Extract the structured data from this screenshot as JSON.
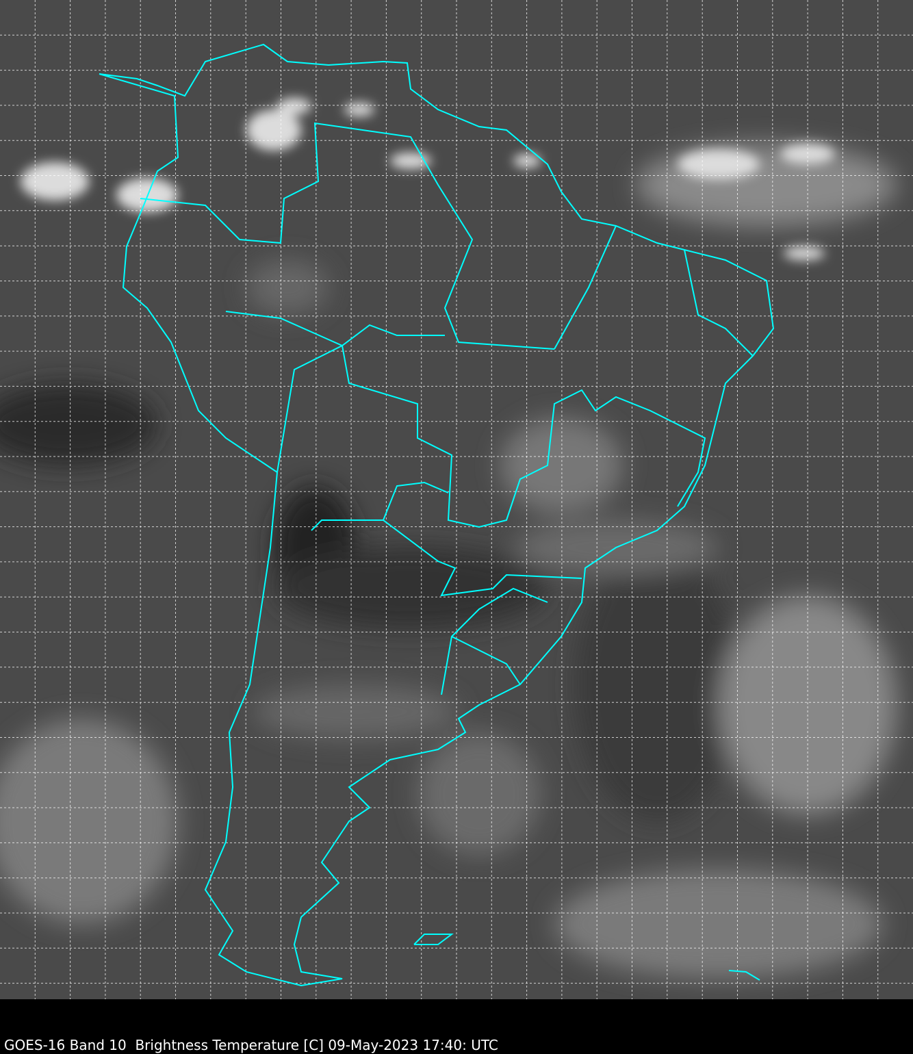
{
  "caption": "GOES-16 Band 10  Brightness Temperature [C] 09-May-2023 17:40: UTC",
  "map": {
    "imagery": "grayscale infrared satellite imagery",
    "region": "South America",
    "grid": "dashed lat/lon graticule",
    "colors": {
      "coastline": "#00ffff",
      "grid": "#ffffff",
      "background": "#000000",
      "caption_text": "#ffffff"
    }
  }
}
